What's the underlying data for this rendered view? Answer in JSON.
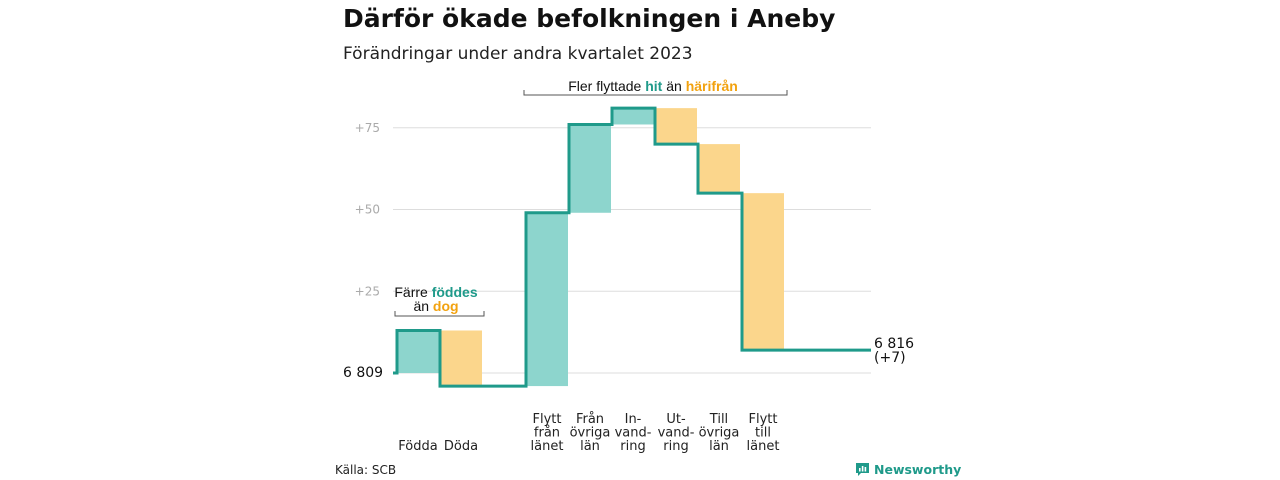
{
  "title": "Därför ökade befolkningen i Aneby",
  "subtitle": "Förändringar under andra kvartalet 2023",
  "source": "Källa: SCB",
  "brand": "Newsworthy",
  "brand_icon": "newsworthy-logo-icon",
  "colors": {
    "increase": "#8dd5cd",
    "decrease": "#fbd68c",
    "line": "#1f9a8a",
    "accent_teal": "#1f9a8a",
    "accent_orange": "#f2a20f",
    "grid": "#dddddd",
    "tick": "#aaaaaa"
  },
  "annotations": {
    "births": {
      "line1": "Färre",
      "hl1": "föddes",
      "line2": "än",
      "hl2": "dog"
    },
    "migration": {
      "text1": "Fler flyttade",
      "hl1": "hit",
      "text2": "än",
      "hl2": "härifrån"
    }
  },
  "chart_data": {
    "type": "waterfall",
    "start": {
      "label": "6 809",
      "value": 6809
    },
    "end": {
      "label": "6 816",
      "change_label": "(+7)",
      "value": 6816
    },
    "yticks": [
      "+25",
      "+50",
      "+75"
    ],
    "ylim": [
      -4,
      80
    ],
    "categories": [
      {
        "lines": [
          "Födda"
        ],
        "value": 13
      },
      {
        "lines": [
          "Döda"
        ],
        "value": -17
      },
      {
        "lines": [
          "Flytt",
          "från",
          "länet"
        ],
        "value": 53
      },
      {
        "lines": [
          "Från",
          "övriga",
          "län"
        ],
        "value": 27
      },
      {
        "lines": [
          "In-",
          "vand-",
          "ring"
        ],
        "value": 5
      },
      {
        "lines": [
          "Ut-",
          "vand-",
          "ring"
        ],
        "value": -11
      },
      {
        "lines": [
          "Till",
          "övriga",
          "län"
        ],
        "value": -15
      },
      {
        "lines": [
          "Flytt",
          "till",
          "länet"
        ],
        "value": -48
      }
    ]
  }
}
